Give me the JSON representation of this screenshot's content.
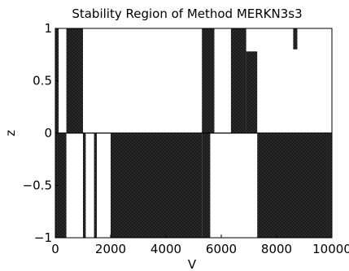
{
  "chart_data": {
    "type": "area",
    "title": "Stability Region of Method MERKN3s3",
    "xlabel": "V",
    "ylabel": "z",
    "xlim": [
      0,
      10000
    ],
    "ylim": [
      -1,
      1
    ],
    "x_ticks": [
      0,
      2000,
      4000,
      6000,
      8000,
      10000
    ],
    "x_tick_labels": [
      "0",
      "2000",
      "4000",
      "6000",
      "8000",
      "10000"
    ],
    "y_ticks": [
      -1,
      -0.5,
      0,
      0.5,
      1
    ],
    "y_tick_labels": [
      "−1",
      "−0.5",
      "0",
      "0.5",
      "1"
    ],
    "grid": false,
    "legend": "none",
    "colors": {
      "region": "#1a1a1a",
      "axes": "#000000",
      "background": "#ffffff"
    },
    "series": [
      {
        "points": [
          [
            0,
            1
          ],
          [
            120,
            1
          ],
          [
            120,
            0.75
          ],
          [
            0,
            0.75
          ],
          [
            0,
            -1
          ],
          [
            150,
            -1
          ],
          [
            150,
            -0.1
          ],
          [
            280,
            -0.1
          ],
          [
            280,
            0
          ],
          [
            1000,
            0
          ]
        ]
      }
    ],
    "regions_upper": [
      {
        "x": [
          0,
          120
        ],
        "z": [
          0,
          1
        ],
        "notch": [
          0.78,
          0.95
        ]
      },
      {
        "x": [
          400,
          1000
        ],
        "z": [
          0,
          1
        ]
      },
      {
        "x": [
          5300,
          5750
        ],
        "z": [
          0,
          1
        ]
      },
      {
        "x": [
          6350,
          7300
        ],
        "z": [
          0,
          1
        ],
        "slope_from": [
          6900,
          0.78
        ]
      },
      {
        "x": [
          8600,
          8750
        ],
        "z": [
          0.8,
          1
        ]
      }
    ],
    "regions_lower": [
      {
        "x": [
          0,
          1500
        ],
        "z": [
          -1,
          0
        ],
        "gaps": [
          [
            400,
            1000
          ],
          [
            1100,
            1400
          ]
        ]
      },
      {
        "x": [
          2000,
          5300
        ],
        "z": [
          -1,
          0
        ]
      },
      {
        "x": [
          5300,
          6400
        ],
        "z": [
          -1,
          0
        ],
        "gaps": [
          [
            5600,
            6400
          ]
        ]
      },
      {
        "x": [
          7300,
          10000
        ],
        "z": [
          -1,
          0
        ],
        "ramp_from": [
          7300,
          -0.52
        ]
      }
    ]
  }
}
